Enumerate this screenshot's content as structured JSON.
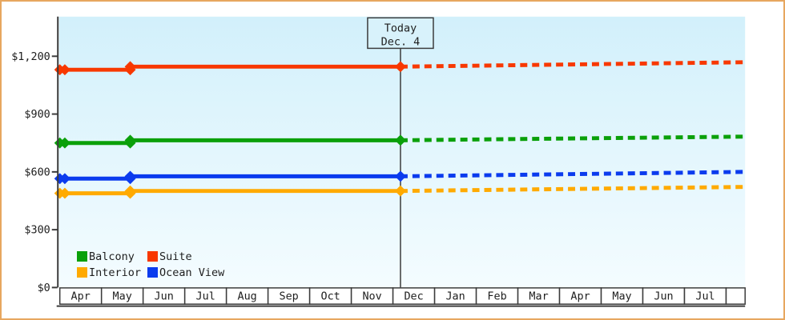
{
  "colors": {
    "frame_border": "#E7A75F",
    "plot_bg_top": "#D2F0FB",
    "plot_bg_bottom": "#F4FCFF",
    "axis": "#3B3B3B",
    "text": "#1E1E1E",
    "month_cell_bg": "#FFFFFF",
    "today_box_bg": "#D8F2FB"
  },
  "chart_data": {
    "type": "line",
    "title": "",
    "y_ticks": {
      "values": [
        0,
        300,
        600,
        900,
        1200
      ],
      "labels": [
        "$0",
        "$300",
        "$600",
        "$900",
        "$1,200"
      ]
    },
    "y_plot_max": 1400,
    "x_months": [
      "Apr",
      "May",
      "Jun",
      "Jul",
      "Aug",
      "Sep",
      "Oct",
      "Nov",
      "Dec",
      "Jan",
      "Feb",
      "Mar",
      "Apr",
      "May",
      "Jun",
      "Jul",
      ""
    ],
    "x_span_months": 16.46,
    "today": {
      "label": [
        "Today",
        "Dec. 4"
      ],
      "x_months_from_start": 8.18
    },
    "legend": [
      {
        "label": "Balcony",
        "color": "#0AA00A"
      },
      {
        "label": "Suite",
        "color": "#F83800"
      },
      {
        "label": "Interior",
        "color": "#FFAA00"
      },
      {
        "label": "Ocean View",
        "color": "#0B3BEE"
      }
    ],
    "series": [
      {
        "name": "Suite",
        "color": "#F83800",
        "solid_points": [
          [
            0,
            1130
          ],
          [
            0.12,
            1130
          ],
          [
            1.69,
            1130
          ],
          [
            1.69,
            1146
          ],
          [
            8.18,
            1146
          ]
        ],
        "projection": {
          "to_x_months": 16.46,
          "value": 1169
        }
      },
      {
        "name": "Balcony",
        "color": "#0AA00A",
        "solid_points": [
          [
            0,
            750
          ],
          [
            0.12,
            750
          ],
          [
            1.69,
            750
          ],
          [
            1.69,
            764
          ],
          [
            8.18,
            764
          ]
        ],
        "projection": {
          "to_x_months": 16.46,
          "value": 783
        }
      },
      {
        "name": "Ocean View",
        "color": "#0B3BEE",
        "solid_points": [
          [
            0,
            565
          ],
          [
            0.12,
            565
          ],
          [
            1.69,
            565
          ],
          [
            1.69,
            577
          ],
          [
            8.18,
            577
          ]
        ],
        "projection": {
          "to_x_months": 16.46,
          "value": 600
        }
      },
      {
        "name": "Interior",
        "color": "#FFAA00",
        "solid_points": [
          [
            0,
            489
          ],
          [
            0.12,
            489
          ],
          [
            1.69,
            489
          ],
          [
            1.69,
            501
          ],
          [
            8.18,
            501
          ]
        ],
        "projection": {
          "to_x_months": 16.46,
          "value": 522
        }
      }
    ],
    "legend_position": "bottom-left-inside",
    "grid": false
  }
}
